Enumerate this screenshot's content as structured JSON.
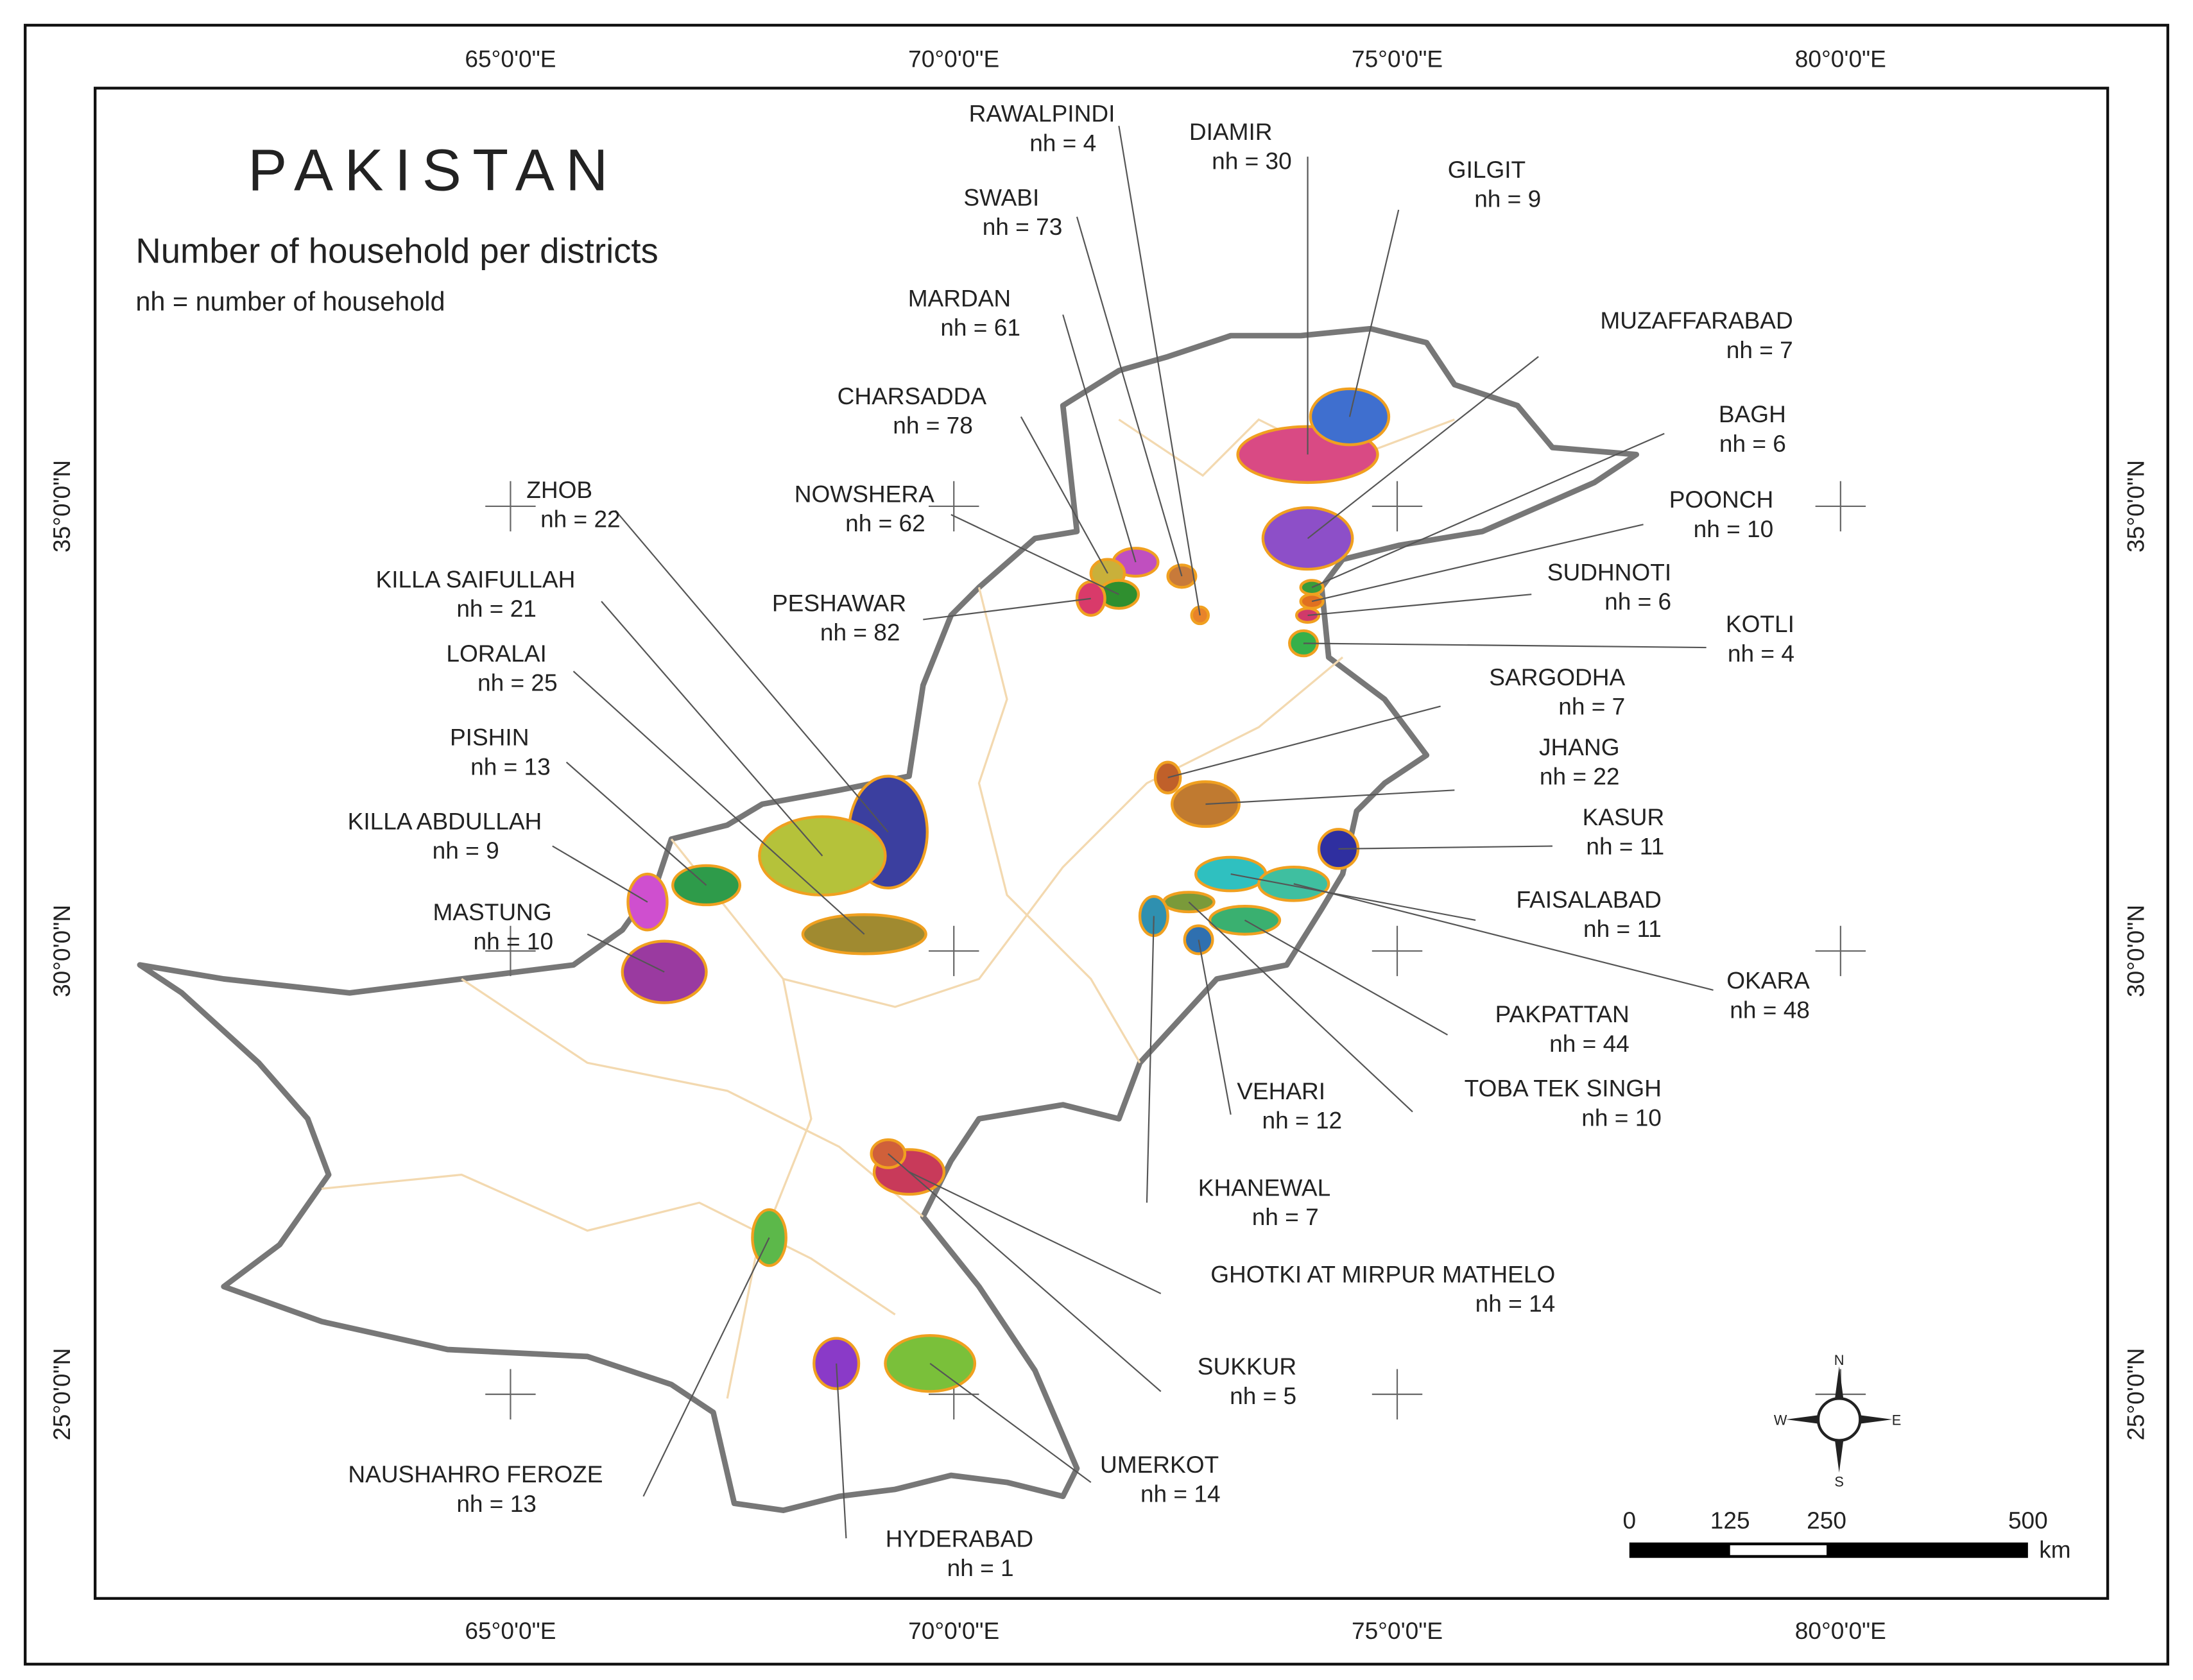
{
  "title": "PAKISTAN",
  "subtitle": "Number of household per districts",
  "note": "nh = number of household",
  "longitude_labels": [
    "65°0'0\"E",
    "70°0'0\"E",
    "75°0'0\"E",
    "80°0'0\"E"
  ],
  "latitude_labels": [
    "35°0'0\"N",
    "30°0'0\"N",
    "25°0'0\"N"
  ],
  "districts": [
    {
      "name": "RAWALPINDI",
      "nh": "nh = 4"
    },
    {
      "name": "DIAMIR",
      "nh": "nh = 30"
    },
    {
      "name": "GILGIT",
      "nh": "nh = 9"
    },
    {
      "name": "SWABI",
      "nh": "nh = 73"
    },
    {
      "name": "MARDAN",
      "nh": "nh = 61"
    },
    {
      "name": "MUZAFFARABAD",
      "nh": "nh = 7"
    },
    {
      "name": "CHARSADDA",
      "nh": "nh = 78"
    },
    {
      "name": "BAGH",
      "nh": "nh = 6"
    },
    {
      "name": "POONCH",
      "nh": "nh = 10"
    },
    {
      "name": "NOWSHERA",
      "nh": "nh = 62"
    },
    {
      "name": "ZHOB",
      "nh": "nh = 22"
    },
    {
      "name": "SUDHNOTI",
      "nh": "nh = 6"
    },
    {
      "name": "PESHAWAR",
      "nh": "nh = 82"
    },
    {
      "name": "KILLA SAIFULLAH",
      "nh": "nh = 21"
    },
    {
      "name": "KOTLI",
      "nh": "nh = 4"
    },
    {
      "name": "LORALAI",
      "nh": "nh = 25"
    },
    {
      "name": "SARGODHA",
      "nh": "nh = 7"
    },
    {
      "name": "PISHIN",
      "nh": "nh = 13"
    },
    {
      "name": "JHANG",
      "nh": "nh = 22"
    },
    {
      "name": "KILLA ABDULLAH",
      "nh": "nh = 9"
    },
    {
      "name": "KASUR",
      "nh": "nh = 11"
    },
    {
      "name": "MASTUNG",
      "nh": "nh = 10"
    },
    {
      "name": "FAISALABAD",
      "nh": "nh = 11"
    },
    {
      "name": "OKARA",
      "nh": "nh = 48"
    },
    {
      "name": "PAKPATTAN",
      "nh": "nh = 44"
    },
    {
      "name": "TOBA TEK SINGH",
      "nh": "nh = 10"
    },
    {
      "name": "VEHARI",
      "nh": "nh = 12"
    },
    {
      "name": "KHANEWAL",
      "nh": "nh = 7"
    },
    {
      "name": "GHOTKI AT MIRPUR MATHELO",
      "nh": "nh = 14"
    },
    {
      "name": "SUKKUR",
      "nh": "nh = 5"
    },
    {
      "name": "UMERKOT",
      "nh": "nh = 14"
    },
    {
      "name": "NAUSHAHRO FEROZE",
      "nh": "nh = 13"
    },
    {
      "name": "HYDERABAD",
      "nh": "nh = 1"
    }
  ],
  "scale_bar": {
    "ticks": [
      0,
      125,
      250,
      500
    ],
    "unit": "km"
  },
  "compass": {
    "n": "N",
    "s": "S",
    "e": "E",
    "w": "W"
  }
}
